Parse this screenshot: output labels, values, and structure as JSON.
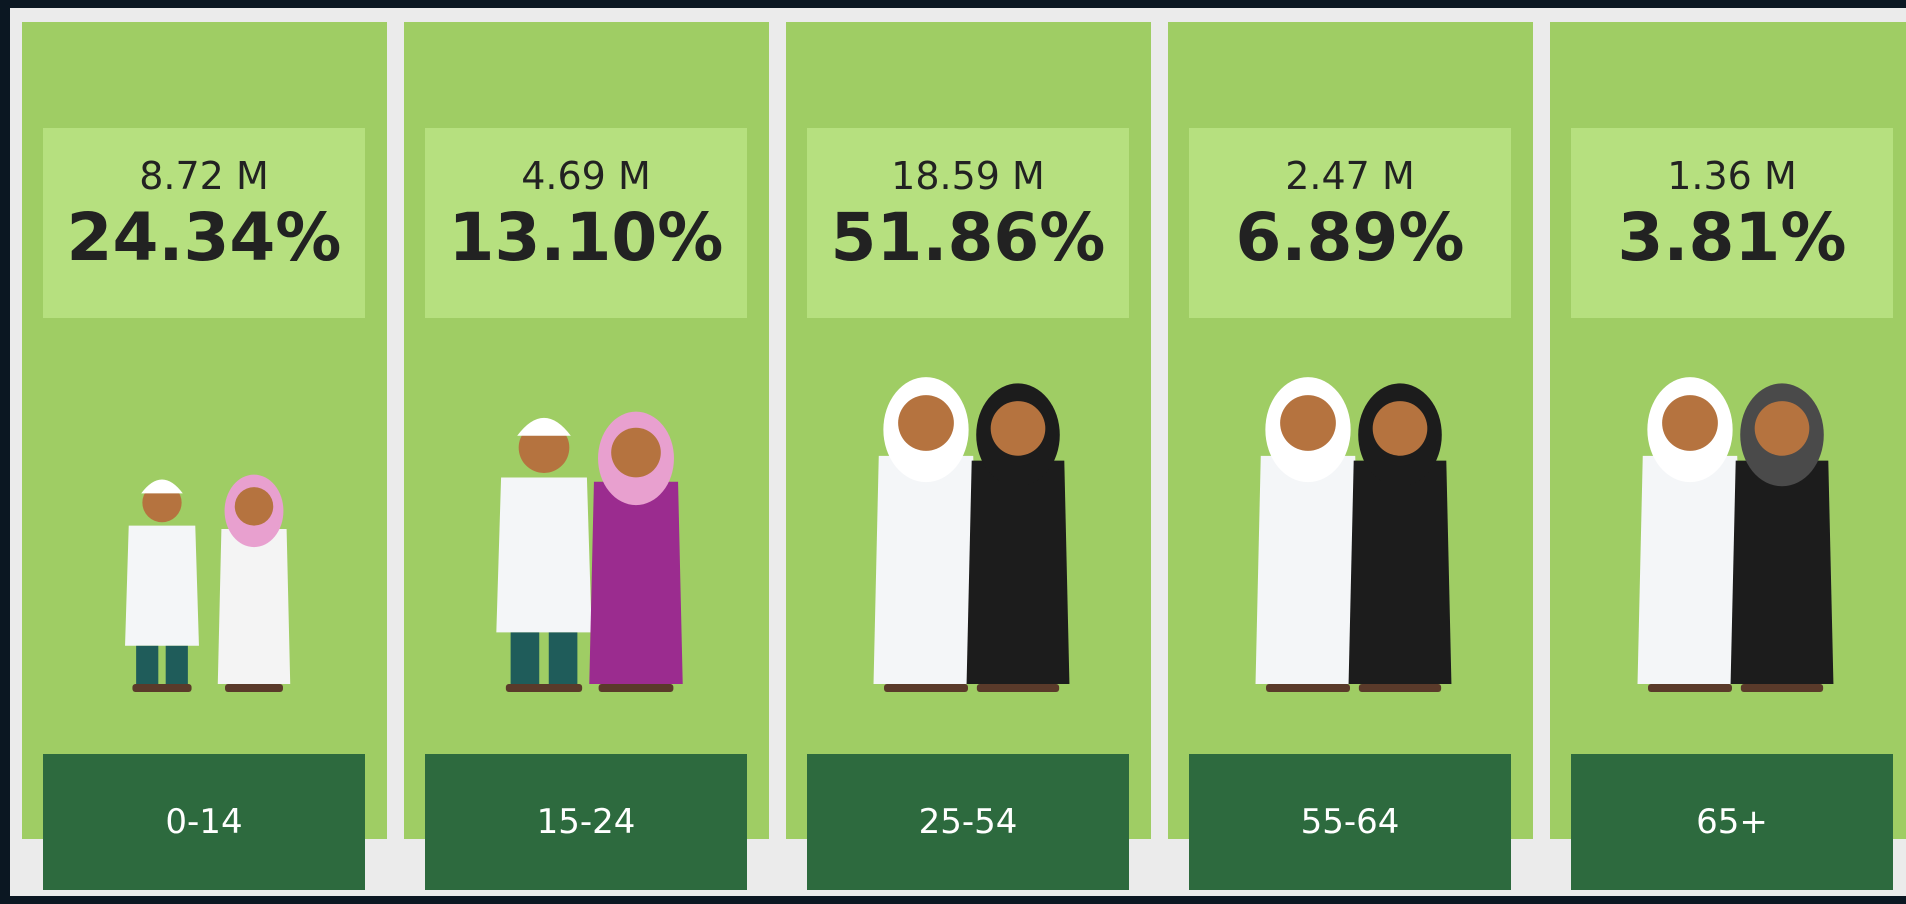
{
  "panels": [
    {
      "population": "8.72 M",
      "percent": "24.34%",
      "label": "0-14"
    },
    {
      "population": "4.69 M",
      "percent": "13.10%",
      "label": "15-24"
    },
    {
      "population": "18.59 M",
      "percent": "51.86%",
      "label": "25-54"
    },
    {
      "population": "2.47 M",
      "percent": "6.89%",
      "label": "55-64"
    },
    {
      "population": "1.36 M",
      "percent": "3.81%",
      "label": "65+"
    }
  ]
}
